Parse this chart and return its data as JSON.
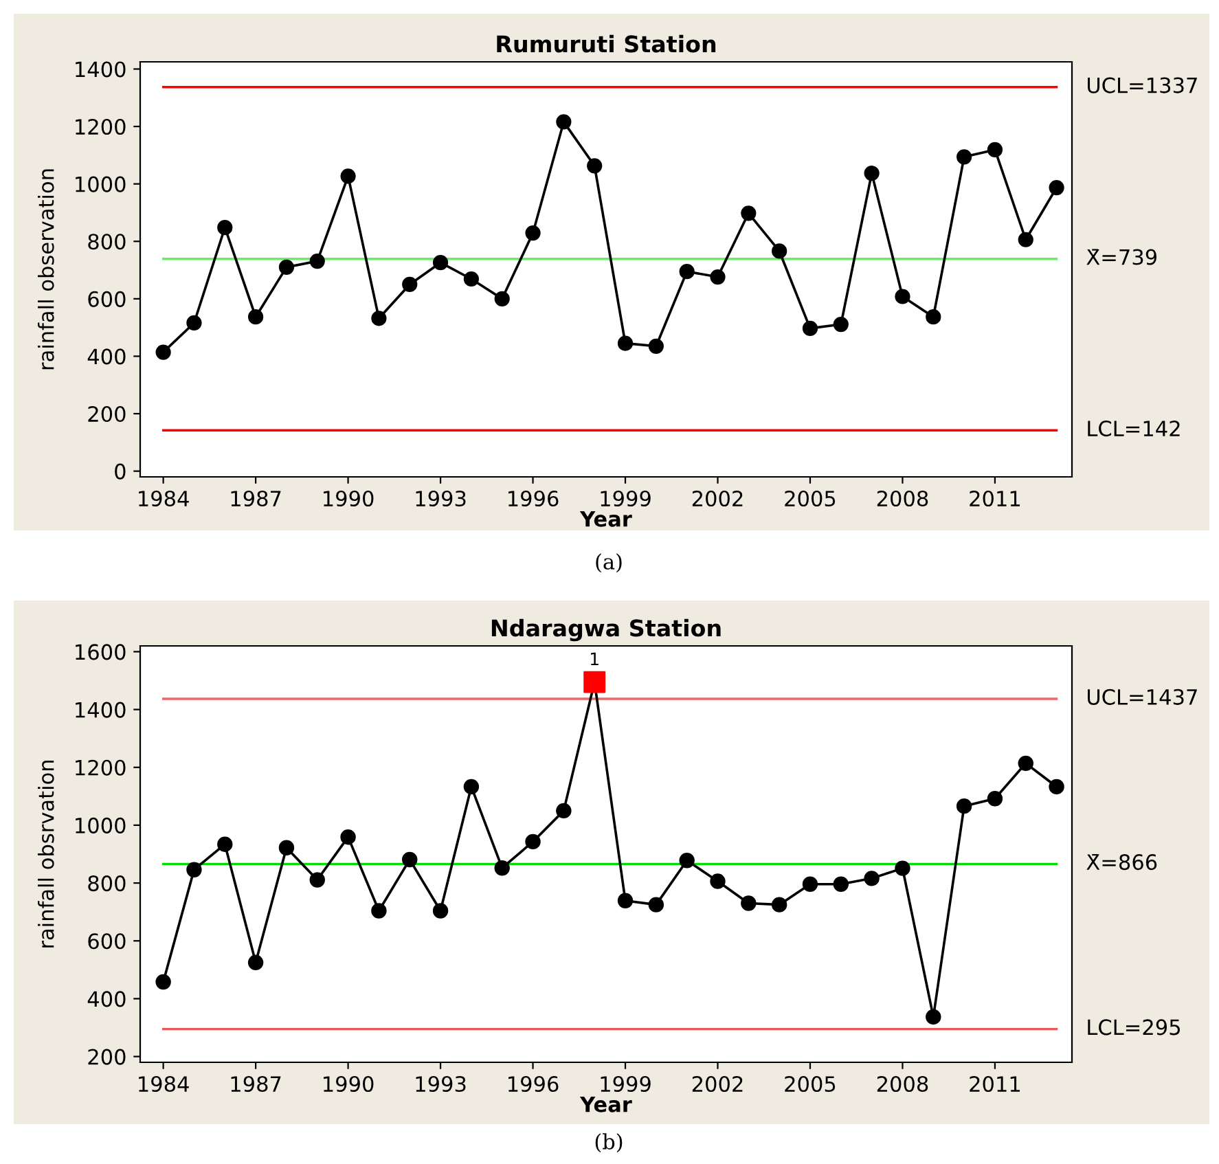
{
  "chart_data": [
    {
      "type": "line",
      "title": "Rumuruti Station",
      "xlabel": "Year",
      "ylabel": "rainfall observation",
      "annotations": [
        "(a)"
      ],
      "x": [
        1984,
        1985,
        1986,
        1987,
        1988,
        1989,
        1990,
        1991,
        1992,
        1993,
        1994,
        1995,
        1996,
        1997,
        1998,
        1999,
        2000,
        2001,
        2002,
        2003,
        2004,
        2005,
        2006,
        2007,
        2008,
        2009,
        2010,
        2011,
        2012,
        2013
      ],
      "series": [
        {
          "color": "#000000",
          "marker": "circle",
          "line_style": "solid",
          "values": [
            414,
            516,
            848,
            537,
            710,
            731,
            1027,
            532,
            650,
            726,
            669,
            600,
            829,
            1216,
            1063,
            445,
            435,
            695,
            676,
            898,
            766,
            497,
            511,
            1037,
            608,
            537,
            1094,
            1119,
            806,
            987
          ]
        }
      ],
      "xlim": [
        1983.25,
        2013.5
      ],
      "ylim": [
        -20,
        1425
      ],
      "xticks": [
        1984,
        1987,
        1990,
        1993,
        1996,
        1999,
        2002,
        2005,
        2008,
        2011
      ],
      "yticks": [
        0,
        200,
        400,
        600,
        800,
        1000,
        1200,
        1400
      ],
      "ref_lines": [
        {
          "axis": "y",
          "value": 1337,
          "label": "UCL=1337",
          "color": "#ff0000"
        },
        {
          "axis": "y",
          "value": 739,
          "label": "X̄=739",
          "color": "#66ee66"
        },
        {
          "axis": "y",
          "value": 142,
          "label": "LCL=142",
          "color": "#ff0000"
        }
      ],
      "grid": false,
      "legend": false
    },
    {
      "type": "line",
      "title": "Ndaragwa Station",
      "xlabel": "Year",
      "ylabel": "rainfall obsrvation",
      "annotations": [
        {
          "text": "1",
          "x": 1998,
          "y": 1495
        },
        "(b)"
      ],
      "x": [
        1984,
        1985,
        1986,
        1987,
        1988,
        1989,
        1990,
        1991,
        1992,
        1993,
        1994,
        1995,
        1996,
        1997,
        1998,
        1999,
        2000,
        2001,
        2002,
        2003,
        2004,
        2005,
        2006,
        2007,
        2008,
        2009,
        2010,
        2011,
        2012,
        2013
      ],
      "series": [
        {
          "color": "#000000",
          "marker": "circle",
          "line_style": "solid",
          "values": [
            458,
            846,
            934,
            525,
            922,
            811,
            959,
            704,
            881,
            704,
            1133,
            852,
            943,
            1050,
            1495,
            739,
            725,
            878,
            806,
            730,
            725,
            796,
            796,
            816,
            851,
            337,
            1066,
            1092,
            1214,
            1133
          ],
          "colors": [
            "#000000",
            "#000000",
            "#000000",
            "#000000",
            "#000000",
            "#000000",
            "#000000",
            "#000000",
            "#000000",
            "#000000",
            "#000000",
            "#000000",
            "#000000",
            "#000000",
            "#ff0000",
            "#000000",
            "#000000",
            "#000000",
            "#000000",
            "#000000",
            "#000000",
            "#000000",
            "#000000",
            "#000000",
            "#000000",
            "#000000",
            "#000000",
            "#000000",
            "#000000",
            "#000000"
          ]
        },
        {
          "type": "scatter",
          "color": "#ff0000",
          "marker": "square",
          "x": [
            1998
          ],
          "values": [
            1495
          ]
        }
      ],
      "xlim": [
        1983.25,
        2013.5
      ],
      "ylim": [
        180,
        1620
      ],
      "xticks": [
        1984,
        1987,
        1990,
        1993,
        1996,
        1999,
        2002,
        2005,
        2008,
        2011
      ],
      "yticks": [
        200,
        400,
        600,
        800,
        1000,
        1200,
        1400,
        1600
      ],
      "ref_lines": [
        {
          "axis": "y",
          "value": 1437,
          "label": "UCL=1437",
          "color": "#ee6666"
        },
        {
          "axis": "y",
          "value": 866,
          "label": "X̄=866",
          "color": "#00dd00"
        },
        {
          "axis": "y",
          "value": 295,
          "label": "LCL=295",
          "color": "#ee5555"
        }
      ],
      "grid": false,
      "legend": false
    }
  ]
}
